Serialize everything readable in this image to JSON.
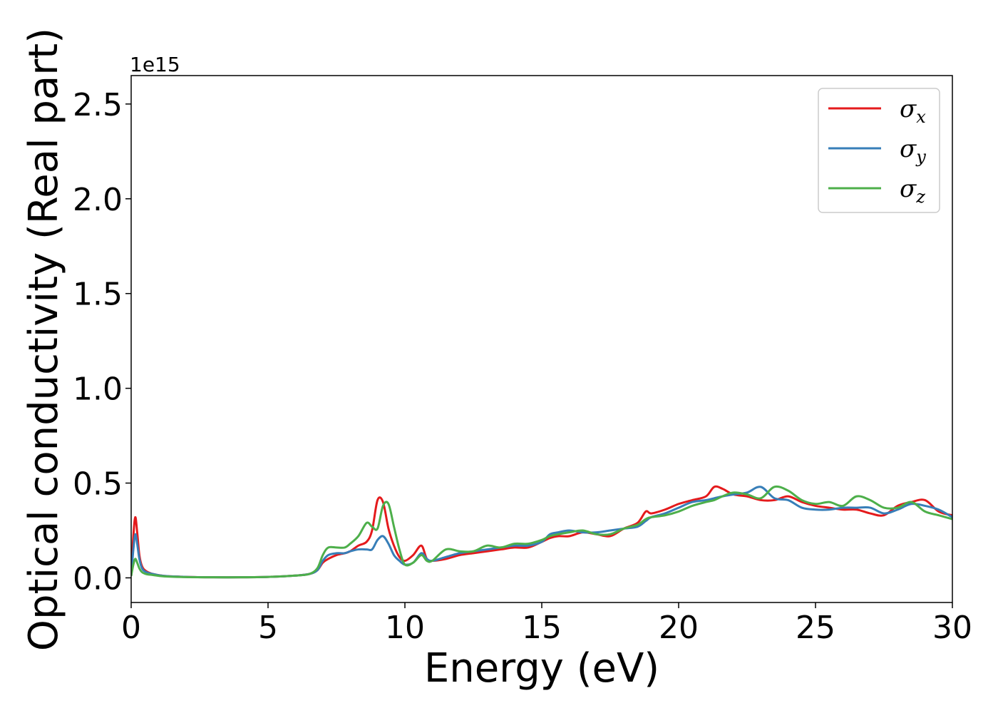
{
  "chart_data": {
    "type": "line",
    "xlabel": "Energy (eV)",
    "ylabel": "Optical conductivity (Real part)",
    "y_offset_label": "1e15",
    "y_scale": 1000000000000000.0,
    "xlim": [
      0,
      30
    ],
    "ylim": [
      -0.13,
      2.65
    ],
    "xticks": [
      0,
      5,
      10,
      15,
      20,
      25,
      30
    ],
    "xtick_labels": [
      "0",
      "5",
      "10",
      "15",
      "20",
      "25",
      "30"
    ],
    "yticks": [
      0.0,
      0.5,
      1.0,
      1.5,
      2.0,
      2.5
    ],
    "ytick_labels": [
      "0.0",
      "0.5",
      "1.0",
      "1.5",
      "2.0",
      "2.5"
    ],
    "grid": false,
    "legend": "top-right",
    "colors": {
      "sigma_x": "#e41a1c",
      "sigma_y": "#377eb8",
      "sigma_z": "#4daf4a"
    },
    "series": [
      {
        "name": "σx",
        "symbol": "σ",
        "subscript": "x",
        "color": "#e41a1c",
        "x": [
          0,
          0.08,
          0.15,
          0.22,
          0.3,
          0.4,
          0.55,
          0.8,
          1.2,
          2,
          3,
          4,
          5,
          6,
          6.5,
          6.8,
          7.0,
          7.2,
          7.5,
          7.8,
          8.0,
          8.3,
          8.6,
          8.8,
          9.0,
          9.2,
          9.4,
          9.6,
          9.8,
          10.0,
          10.3,
          10.6,
          10.8,
          11.0,
          11.5,
          12.0,
          12.5,
          13.0,
          13.5,
          14.0,
          14.5,
          15.0,
          15.3,
          15.6,
          16.0,
          16.5,
          17.0,
          17.5,
          18.0,
          18.5,
          18.8,
          19.0,
          19.5,
          20.0,
          20.5,
          21.0,
          21.3,
          21.6,
          22.0,
          22.5,
          23.0,
          23.5,
          24.0,
          24.5,
          25.0,
          25.5,
          26.0,
          26.5,
          27.0,
          27.5,
          28.0,
          28.5,
          29.0,
          29.5,
          30.0
        ],
        "y": [
          0.01,
          0.22,
          0.32,
          0.24,
          0.12,
          0.06,
          0.035,
          0.02,
          0.01,
          0.005,
          0.003,
          0.003,
          0.005,
          0.012,
          0.02,
          0.04,
          0.08,
          0.1,
          0.12,
          0.13,
          0.14,
          0.17,
          0.19,
          0.25,
          0.41,
          0.4,
          0.26,
          0.17,
          0.11,
          0.09,
          0.12,
          0.17,
          0.1,
          0.09,
          0.1,
          0.12,
          0.13,
          0.14,
          0.15,
          0.16,
          0.16,
          0.19,
          0.21,
          0.22,
          0.22,
          0.24,
          0.23,
          0.22,
          0.26,
          0.29,
          0.35,
          0.34,
          0.36,
          0.39,
          0.41,
          0.43,
          0.48,
          0.47,
          0.44,
          0.43,
          0.41,
          0.41,
          0.43,
          0.4,
          0.38,
          0.37,
          0.36,
          0.36,
          0.34,
          0.33,
          0.38,
          0.4,
          0.41,
          0.35,
          0.33
        ]
      },
      {
        "name": "σy",
        "symbol": "σ",
        "subscript": "y",
        "color": "#377eb8",
        "x": [
          0,
          0.08,
          0.15,
          0.22,
          0.3,
          0.4,
          0.55,
          0.8,
          1.2,
          2,
          3,
          4,
          5,
          6,
          6.5,
          6.8,
          7.0,
          7.2,
          7.5,
          7.8,
          8.0,
          8.3,
          8.6,
          8.8,
          9.0,
          9.2,
          9.4,
          9.6,
          9.8,
          10.0,
          10.3,
          10.6,
          10.8,
          11.0,
          11.5,
          12.0,
          12.5,
          13.0,
          13.5,
          14.0,
          14.5,
          15.0,
          15.3,
          15.6,
          16.0,
          16.5,
          17.0,
          17.5,
          18.0,
          18.5,
          18.8,
          19.0,
          19.5,
          20.0,
          20.5,
          21.0,
          21.3,
          21.6,
          22.0,
          22.5,
          23.0,
          23.5,
          24.0,
          24.5,
          25.0,
          25.5,
          26.0,
          26.5,
          27.0,
          27.5,
          28.0,
          28.5,
          29.0,
          29.5,
          30.0
        ],
        "y": [
          0.01,
          0.15,
          0.23,
          0.18,
          0.1,
          0.05,
          0.03,
          0.02,
          0.01,
          0.005,
          0.003,
          0.003,
          0.005,
          0.012,
          0.02,
          0.04,
          0.09,
          0.12,
          0.13,
          0.13,
          0.14,
          0.15,
          0.15,
          0.15,
          0.2,
          0.22,
          0.18,
          0.12,
          0.09,
          0.07,
          0.08,
          0.13,
          0.1,
          0.09,
          0.11,
          0.13,
          0.14,
          0.15,
          0.16,
          0.17,
          0.17,
          0.19,
          0.23,
          0.24,
          0.25,
          0.24,
          0.24,
          0.25,
          0.26,
          0.27,
          0.3,
          0.32,
          0.34,
          0.37,
          0.4,
          0.41,
          0.42,
          0.43,
          0.44,
          0.45,
          0.48,
          0.42,
          0.41,
          0.37,
          0.36,
          0.36,
          0.37,
          0.37,
          0.37,
          0.34,
          0.36,
          0.39,
          0.38,
          0.36,
          0.32
        ]
      },
      {
        "name": "σz",
        "symbol": "σ",
        "subscript": "z",
        "color": "#4daf4a",
        "x": [
          0,
          0.08,
          0.15,
          0.22,
          0.3,
          0.4,
          0.55,
          0.8,
          1.2,
          2,
          3,
          4,
          5,
          6,
          6.5,
          6.8,
          7.0,
          7.2,
          7.5,
          7.8,
          8.0,
          8.3,
          8.6,
          8.8,
          9.0,
          9.2,
          9.4,
          9.6,
          9.8,
          10.0,
          10.3,
          10.6,
          10.8,
          11.0,
          11.5,
          12.0,
          12.5,
          13.0,
          13.5,
          14.0,
          14.5,
          15.0,
          15.3,
          15.6,
          16.0,
          16.5,
          17.0,
          17.5,
          18.0,
          18.5,
          18.8,
          19.0,
          19.5,
          20.0,
          20.5,
          21.0,
          21.3,
          21.6,
          22.0,
          22.5,
          23.0,
          23.5,
          24.0,
          24.5,
          25.0,
          25.5,
          26.0,
          26.5,
          27.0,
          27.5,
          28.0,
          28.5,
          29.0,
          29.5,
          30.0
        ],
        "y": [
          0.01,
          0.07,
          0.1,
          0.08,
          0.05,
          0.03,
          0.02,
          0.015,
          0.008,
          0.004,
          0.003,
          0.003,
          0.005,
          0.012,
          0.02,
          0.05,
          0.12,
          0.16,
          0.16,
          0.16,
          0.18,
          0.22,
          0.29,
          0.27,
          0.26,
          0.38,
          0.39,
          0.27,
          0.15,
          0.07,
          0.08,
          0.12,
          0.09,
          0.09,
          0.15,
          0.14,
          0.14,
          0.17,
          0.16,
          0.18,
          0.18,
          0.2,
          0.22,
          0.23,
          0.24,
          0.25,
          0.23,
          0.23,
          0.26,
          0.28,
          0.31,
          0.32,
          0.33,
          0.35,
          0.38,
          0.4,
          0.41,
          0.43,
          0.45,
          0.44,
          0.42,
          0.48,
          0.46,
          0.41,
          0.39,
          0.4,
          0.38,
          0.43,
          0.41,
          0.37,
          0.37,
          0.4,
          0.35,
          0.33,
          0.31
        ]
      }
    ]
  }
}
